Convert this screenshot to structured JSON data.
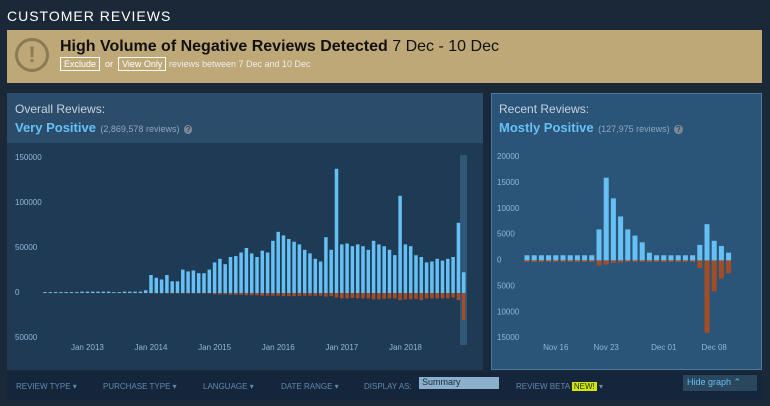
{
  "header": "CUSTOMER REVIEWS",
  "alert": {
    "title": "High Volume of Negative Reviews Detected",
    "dates": "7 Dec - 10 Dec",
    "exclude": "Exclude",
    "or": "or",
    "view_only": "View Only",
    "note": "reviews between 7 Dec and 10 Dec"
  },
  "overall": {
    "label": "Overall Reviews:",
    "rating": "Very Positive",
    "count": "(2,869,578 reviews)",
    "help": "?"
  },
  "recent": {
    "label": "Recent Reviews:",
    "rating": "Mostly Positive",
    "count": "(127,975 reviews)",
    "help": "?"
  },
  "filters": {
    "items": [
      "REVIEW TYPE",
      "PURCHASE TYPE",
      "LANGUAGE",
      "DATE RANGE"
    ],
    "display_as": "DISPLAY AS:",
    "display_value": "Summary",
    "beta": "REVIEW BETA",
    "new": "NEW!",
    "hide": "Hide graph"
  },
  "chart_data": [
    {
      "type": "bar",
      "ylim": [
        -50000,
        160000
      ],
      "yticks": [
        {
          "value": -50000,
          "label": "50000"
        },
        0,
        50000,
        100000,
        150000
      ],
      "categories": [
        null,
        null,
        null,
        null,
        null,
        null,
        null,
        null,
        "Jan 2013",
        null,
        null,
        null,
        null,
        null,
        null,
        null,
        null,
        null,
        null,
        null,
        "Jan 2014",
        null,
        null,
        null,
        null,
        null,
        null,
        null,
        null,
        null,
        null,
        null,
        "Jan 2015",
        null,
        null,
        null,
        null,
        null,
        null,
        null,
        null,
        null,
        null,
        null,
        "Jan 2016",
        null,
        null,
        null,
        null,
        null,
        null,
        null,
        null,
        null,
        null,
        null,
        "Jan 2017",
        null,
        null,
        null,
        null,
        null,
        null,
        null,
        null,
        null,
        null,
        null,
        "Jan 2018",
        null,
        null,
        null,
        null,
        null,
        null,
        null,
        null,
        null,
        null,
        null
      ],
      "series": [
        {
          "color": "#66c0f4",
          "values": [
            1000,
            1000,
            1000,
            1000,
            1000,
            1000,
            1000,
            1500,
            1500,
            1500,
            1500,
            1500,
            1500,
            1000,
            1000,
            1500,
            1500,
            1500,
            1500,
            3000,
            20000,
            17000,
            15000,
            20000,
            13000,
            13000,
            26000,
            24000,
            25000,
            22000,
            22000,
            26000,
            34000,
            38000,
            32000,
            40000,
            41000,
            45000,
            50000,
            44000,
            40000,
            47000,
            45000,
            58000,
            68000,
            64000,
            60000,
            57000,
            54000,
            48000,
            44000,
            38000,
            35000,
            62000,
            48000,
            138000,
            54000,
            55000,
            52000,
            54000,
            52000,
            48000,
            58000,
            54000,
            52000,
            48000,
            42000,
            108000,
            54000,
            52000,
            42000,
            40000,
            34000,
            35000,
            38000,
            36000,
            38000,
            40000,
            78000,
            23000
          ]
        },
        {
          "color": "#a34c25",
          "values": [
            -200,
            -200,
            -200,
            -200,
            -200,
            -200,
            -200,
            -200,
            -200,
            -200,
            -200,
            -200,
            -200,
            -200,
            -200,
            -200,
            -200,
            -200,
            -200,
            -200,
            -500,
            -500,
            -500,
            -500,
            -500,
            -500,
            -500,
            -500,
            -500,
            -500,
            -500,
            -500,
            -1500,
            -1500,
            -1500,
            -2000,
            -2000,
            -2000,
            -2500,
            -2500,
            -2500,
            -3000,
            -3000,
            -3000,
            -3000,
            -3500,
            -3500,
            -3500,
            -3500,
            -3000,
            -3000,
            -3000,
            -3000,
            -4000,
            -3500,
            -5000,
            -6000,
            -6000,
            -5500,
            -6000,
            -6000,
            -6000,
            -7000,
            -7000,
            -6500,
            -6000,
            -6000,
            -8000,
            -7000,
            -7000,
            -6500,
            -8000,
            -6000,
            -6000,
            -6000,
            -6000,
            -6000,
            -5000,
            -8000,
            -30000
          ]
        }
      ]
    },
    {
      "type": "bar",
      "ylim": [
        -15000,
        20000
      ],
      "yticks": [
        {
          "value": -15000,
          "label": "15000"
        },
        {
          "value": -10000,
          "label": "10000"
        },
        {
          "value": -5000,
          "label": "5000"
        },
        0,
        5000,
        10000,
        15000,
        20000
      ],
      "categories": [
        null,
        null,
        null,
        null,
        "Nov 16",
        null,
        null,
        null,
        null,
        null,
        null,
        "Nov 23",
        null,
        null,
        null,
        null,
        null,
        null,
        null,
        "Dec 01",
        null,
        null,
        null,
        null,
        null,
        null,
        "Dec 08",
        null,
        null
      ],
      "series": [
        {
          "color": "#66c0f4",
          "values": [
            1000,
            1000,
            1000,
            1000,
            1000,
            1000,
            1000,
            1000,
            1000,
            1000,
            6000,
            16000,
            12000,
            8500,
            6000,
            4800,
            3500,
            1500,
            1000,
            1000,
            1000,
            1000,
            1000,
            1000,
            3000,
            7000,
            3800,
            2800,
            1500
          ]
        },
        {
          "color": "#a34c25",
          "values": [
            -300,
            -300,
            -300,
            -300,
            -300,
            -300,
            -300,
            -300,
            -300,
            -300,
            -1000,
            -800,
            -500,
            -400,
            -300,
            -300,
            -300,
            -300,
            -300,
            -300,
            -300,
            -300,
            -300,
            -300,
            -1500,
            -14000,
            -6000,
            -3500,
            -2500
          ]
        }
      ]
    }
  ]
}
